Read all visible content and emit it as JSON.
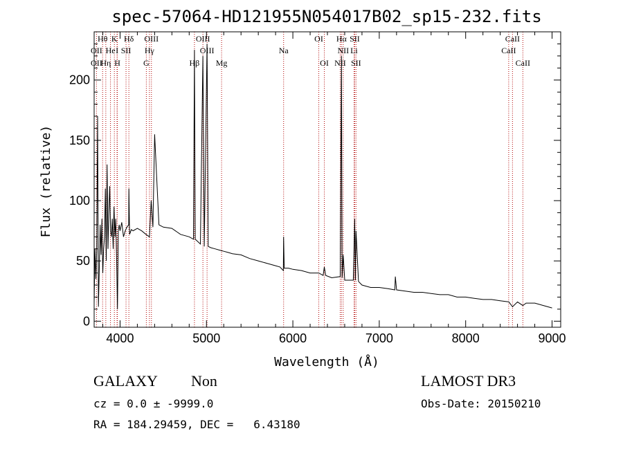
{
  "chart_data": {
    "type": "line",
    "title": "spec-57064-HD121955N054017B02_sp15-232.fits",
    "xlabel": "Wavelength (Å)",
    "ylabel": "Flux (relative)",
    "xlim": [
      3700,
      9100
    ],
    "ylim": [
      -5,
      240
    ],
    "xticks": [
      4000,
      5000,
      6000,
      7000,
      8000,
      9000
    ],
    "yticks": [
      0,
      50,
      100,
      150,
      200
    ],
    "series": [
      {
        "name": "flux",
        "x": [
          3700,
          3710,
          3720,
          3730,
          3740,
          3750,
          3760,
          3770,
          3780,
          3790,
          3800,
          3810,
          3820,
          3830,
          3840,
          3850,
          3860,
          3870,
          3880,
          3890,
          3900,
          3910,
          3920,
          3930,
          3940,
          3950,
          3960,
          3970,
          3980,
          3990,
          4000,
          4020,
          4040,
          4060,
          4080,
          4100,
          4102,
          4110,
          4130,
          4150,
          4200,
          4250,
          4300,
          4340,
          4360,
          4380,
          4400,
          4450,
          4500,
          4600,
          4700,
          4800,
          4850,
          4861,
          4870,
          4900,
          4930,
          4959,
          4975,
          5007,
          5020,
          5050,
          5100,
          5150,
          5200,
          5250,
          5300,
          5400,
          5500,
          5600,
          5700,
          5800,
          5850,
          5890,
          5893,
          5900,
          5950,
          6000,
          6100,
          6200,
          6300,
          6350,
          6364,
          6380,
          6450,
          6548,
          6563,
          6570,
          6583,
          6600,
          6650,
          6700,
          6716,
          6724,
          6731,
          6760,
          6800,
          6900,
          7000,
          7100,
          7180,
          7186,
          7200,
          7300,
          7400,
          7500,
          7600,
          7700,
          7800,
          7900,
          8000,
          8100,
          8200,
          8300,
          8400,
          8500,
          8542,
          8600,
          8662,
          8700,
          8800,
          8900,
          9000
        ],
        "y": [
          15,
          60,
          35,
          58,
          170,
          12,
          45,
          80,
          55,
          85,
          40,
          60,
          70,
          110,
          50,
          130,
          60,
          90,
          112,
          75,
          70,
          85,
          60,
          95,
          70,
          85,
          50,
          10,
          75,
          80,
          75,
          82,
          70,
          75,
          78,
          80,
          110,
          72,
          76,
          75,
          77,
          75,
          72,
          70,
          100,
          78,
          155,
          80,
          78,
          77,
          72,
          70,
          68,
          225,
          68,
          66,
          64,
          220,
          62,
          230,
          62,
          61,
          60,
          59,
          58,
          57,
          56,
          55,
          52,
          50,
          48,
          46,
          45,
          42,
          70,
          44,
          44,
          43,
          42,
          40,
          40,
          38,
          45,
          38,
          36,
          37,
          220,
          36,
          55,
          34,
          34,
          34,
          85,
          34,
          75,
          33,
          30,
          28,
          28,
          27,
          26,
          37,
          26,
          25,
          24,
          24,
          23,
          22,
          22,
          20,
          20,
          19,
          18,
          18,
          17,
          16,
          12,
          16,
          13,
          15,
          15,
          13,
          11
        ]
      }
    ],
    "lines": [
      {
        "label": "Hθ",
        "wave": 3798,
        "row": 0
      },
      {
        "label": "K",
        "wave": 3934,
        "row": 0
      },
      {
        "label": "Hδ",
        "wave": 4102,
        "row": 0
      },
      {
        "label": "OIII",
        "wave": 4363,
        "row": 0
      },
      {
        "label": "OIII",
        "wave": 4959,
        "row": 0
      },
      {
        "label": "OI",
        "wave": 6300,
        "row": 0
      },
      {
        "label": "Hα",
        "wave": 6563,
        "row": 0
      },
      {
        "label": "SII",
        "wave": 6716,
        "row": 0
      },
      {
        "label": "CaII",
        "wave": 8542,
        "row": 0
      },
      {
        "label": "OII",
        "wave": 3727,
        "row": 1
      },
      {
        "label": "He",
        "wave": 3889,
        "row": 1
      },
      {
        "label": "I",
        "wave": 3965,
        "row": 1
      },
      {
        "label": "SII",
        "wave": 4069,
        "row": 1
      },
      {
        "label": "Hγ",
        "wave": 4340,
        "row": 1
      },
      {
        "label": "OIII",
        "wave": 5007,
        "row": 1
      },
      {
        "label": "Na",
        "wave": 5893,
        "row": 1
      },
      {
        "label": "NII",
        "wave": 6583,
        "row": 1
      },
      {
        "label": "Li",
        "wave": 6708,
        "row": 1
      },
      {
        "label": "CaII",
        "wave": 8498,
        "row": 1
      },
      {
        "label": "OII",
        "wave": 3727,
        "row": 2
      },
      {
        "label": "Hη",
        "wave": 3835,
        "row": 2
      },
      {
        "label": "H",
        "wave": 3969,
        "row": 2
      },
      {
        "label": "G",
        "wave": 4304,
        "row": 2
      },
      {
        "label": "Hβ",
        "wave": 4861,
        "row": 2
      },
      {
        "label": "Mg",
        "wave": 5175,
        "row": 2
      },
      {
        "label": "OI",
        "wave": 6364,
        "row": 2
      },
      {
        "label": "NII",
        "wave": 6548,
        "row": 2
      },
      {
        "label": "SII",
        "wave": 6731,
        "row": 2
      },
      {
        "label": "CaII",
        "wave": 8662,
        "row": 2
      }
    ]
  },
  "info": {
    "class_label": "GALAXY",
    "subclass_label": "Non",
    "survey": "LAMOST DR3",
    "cz_text": "cz = 0.0 ± -9999.0",
    "obs_date": "Obs-Date: 20150210",
    "radec": "RA = 184.29459, DEC =   6.43180"
  },
  "colors": {
    "spectrum": "#000000",
    "marker_line": "#b00000"
  }
}
